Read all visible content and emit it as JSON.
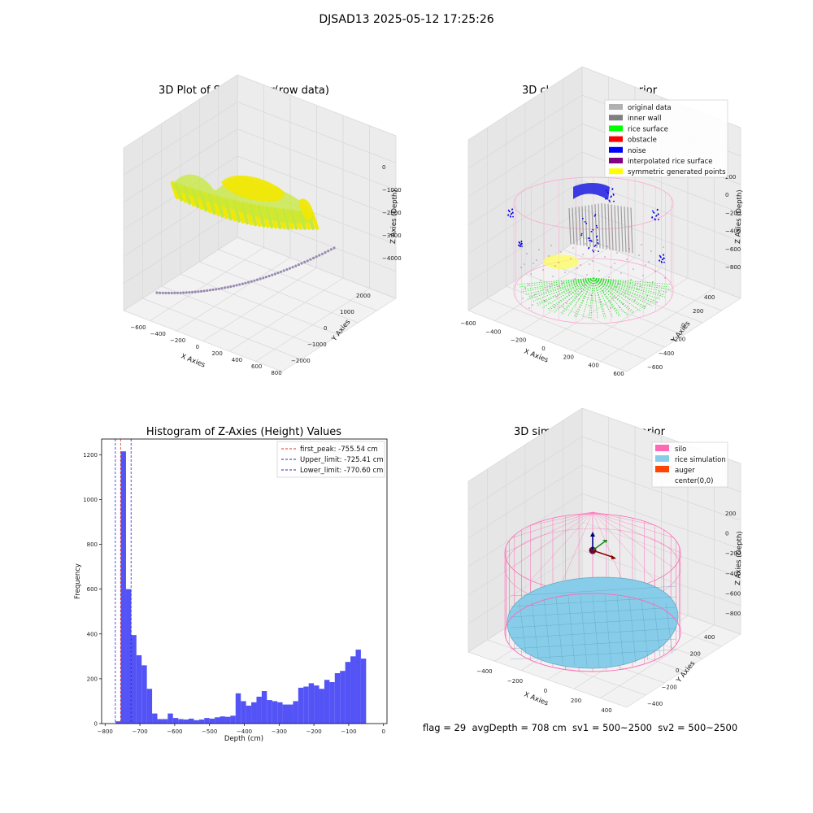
{
  "suptitle": "DJSAD13 2025-05-12 17:25:26",
  "footer": "flag = 29  avgDepth = 708 cm  sv1 = 500~2500  sv2 = 500~2500",
  "colors": {
    "gridline": "#d7d7d7",
    "pane": "#f2f2f2",
    "hist_bar": "#4a4af5",
    "peak_line": "#e03030",
    "limit_line": "#2424d8",
    "silo": "#ff69b4",
    "rice_sim": "#87cdea",
    "auger": "#ff4500",
    "raw_surface_a": "#c7e83a",
    "raw_surface_b": "#f2e800",
    "raw_arc": "#8a7aa6"
  },
  "chart_data": [
    {
      "type": "scatter",
      "title": "3D Plot of Silo Interior(row data)",
      "xlabel": "X Axies",
      "ylabel": "Y Axies",
      "zlabel": "Z Axies (Depth)",
      "xticks": [
        "−600",
        "−400",
        "−200",
        "0",
        "200",
        "400",
        "600",
        "800"
      ],
      "yticks": [
        "−2000",
        "−1000",
        "0",
        "1000",
        "2000"
      ],
      "zticks": [
        "0",
        "−1000",
        "−2000",
        "−3000",
        "−4000"
      ]
    },
    {
      "type": "scatter",
      "title": "3D classify of Silo Interior",
      "xlabel": "X Axies",
      "ylabel": "Y Axies",
      "zlabel": "Z Axies (Depth)",
      "xticks": [
        "−600",
        "−400",
        "−200",
        "0",
        "200",
        "400",
        "600"
      ],
      "yticks": [
        "−600",
        "−400",
        "−200",
        "0",
        "200",
        "400"
      ],
      "zticks": [
        "200",
        "0",
        "−200",
        "−400",
        "−600",
        "−800"
      ],
      "legend_position": "top-right",
      "legend": [
        {
          "name": "original data",
          "color": "#b0b0b0"
        },
        {
          "name": "inner wall",
          "color": "#808080"
        },
        {
          "name": "rice surface",
          "color": "#00ff00"
        },
        {
          "name": "obstacle",
          "color": "#ff0000"
        },
        {
          "name": "noise",
          "color": "#0000ff"
        },
        {
          "name": "interpolated rice surface",
          "color": "#800080"
        },
        {
          "name": "symmetric generated points",
          "color": "#ffff00"
        }
      ]
    },
    {
      "type": "bar",
      "title": "Histogram of Z-Axies (Height) Values",
      "xlabel": "Depth (cm)",
      "ylabel": "Frequency",
      "xlim": [
        -800,
        0
      ],
      "ylim": [
        0,
        1270
      ],
      "xticks": [
        -800,
        -700,
        -600,
        -500,
        -400,
        -300,
        -200,
        -100,
        0
      ],
      "xtick_labels": [
        "−800",
        "−700",
        "−600",
        "−500",
        "−400",
        "−300",
        "−200",
        "−100",
        "0"
      ],
      "yticks": [
        0,
        200,
        400,
        600,
        800,
        1000,
        1200
      ],
      "bin_start": -770,
      "bin_width": 15,
      "values": [
        10,
        1215,
        600,
        395,
        305,
        260,
        155,
        45,
        20,
        20,
        45,
        25,
        20,
        18,
        22,
        15,
        18,
        25,
        22,
        28,
        32,
        30,
        35,
        135,
        100,
        80,
        95,
        120,
        145,
        105,
        100,
        95,
        85,
        85,
        100,
        160,
        165,
        180,
        170,
        155,
        195,
        185,
        225,
        235,
        275,
        300,
        330,
        290
      ],
      "lines": [
        {
          "label": "first_peak: -755.54 cm",
          "x": -755.54,
          "color": "#e03030"
        },
        {
          "label": "Upper_limit: -725.41 cm",
          "x": -725.41,
          "color": "#2424d8"
        },
        {
          "label": "Lower_limit: -770.60 cm",
          "x": -770.6,
          "color": "#2424d8"
        }
      ],
      "legend_position": "top-right"
    },
    {
      "type": "scatter",
      "title": "3D simulation of Silo Interior",
      "xlabel": "X Axies",
      "ylabel": "Y Axies",
      "zlabel": "Z Axies (Depth)",
      "xticks": [
        "−400",
        "−200",
        "0",
        "200",
        "400"
      ],
      "yticks": [
        "−400",
        "−200",
        "0",
        "200",
        "400"
      ],
      "zticks": [
        "200",
        "0",
        "−200",
        "−400",
        "−600",
        "−800"
      ],
      "legend_position": "top-right",
      "legend": [
        {
          "name": "silo",
          "color": "#ff69b4"
        },
        {
          "name": "rice simulation",
          "color": "#87cdea"
        },
        {
          "name": "auger",
          "color": "#ff4500"
        },
        {
          "name": "center(0,0)",
          "color": ""
        }
      ]
    }
  ]
}
